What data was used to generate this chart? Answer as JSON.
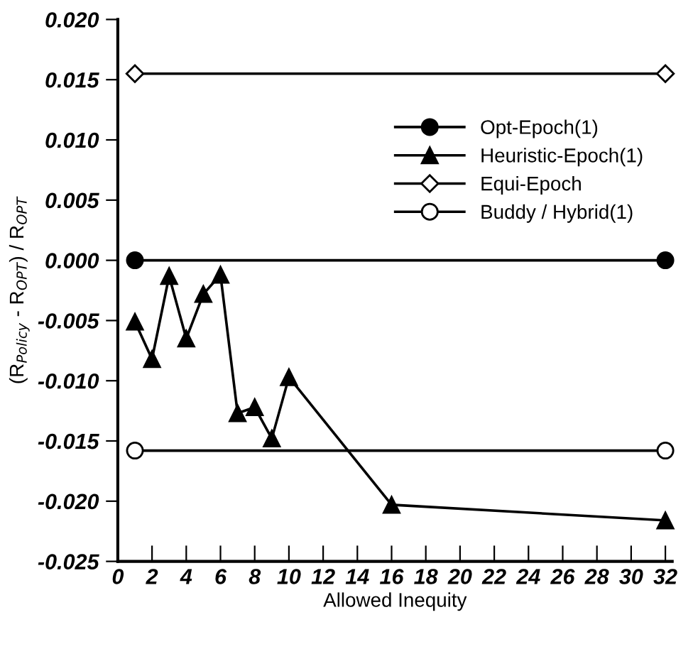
{
  "chart_data": {
    "type": "line",
    "xlabel": "Allowed Inequity",
    "ylabel": "(R$_{Policy}$ - R$_{OPT}$) / R$_{OPT}$",
    "xlim": [
      0,
      32.4
    ],
    "xticks": [
      0,
      2,
      4,
      6,
      8,
      10,
      12,
      14,
      16,
      18,
      20,
      22,
      24,
      26,
      28,
      30,
      32
    ],
    "ylim": [
      -0.025,
      0.02
    ],
    "yticks": [
      {
        "value": -0.025,
        "label": "-0.025"
      },
      {
        "value": -0.02,
        "label": "-0.020"
      },
      {
        "value": -0.015,
        "label": "-0.015"
      },
      {
        "value": -0.01,
        "label": "-0.010"
      },
      {
        "value": -0.005,
        "label": "-0.005"
      },
      {
        "value": 0,
        "label": "0.000"
      },
      {
        "value": 0.005,
        "label": "0.005"
      },
      {
        "value": 0.01,
        "label": "0.010"
      },
      {
        "value": 0.015,
        "label": "0.015"
      },
      {
        "value": 0.02,
        "label": "0.020"
      }
    ],
    "grid": false,
    "legend": "right",
    "line_style": "solid",
    "series": [
      {
        "name": "Opt-Epoch(1)",
        "color": "#000000",
        "marker": "circle",
        "x": [
          1,
          32
        ],
        "values": [
          0,
          0
        ]
      },
      {
        "name": "Heuristic-Epoch(1)",
        "color": "#000000",
        "marker": "triangle",
        "x": [
          1,
          2,
          3,
          4,
          5,
          6,
          7,
          8,
          9,
          10,
          16,
          32
        ],
        "values": [
          -0.0051,
          -0.0082,
          -0.0013,
          -0.0065,
          -0.0028,
          -0.0012,
          -0.0127,
          -0.0122,
          -0.0148,
          -0.0097,
          -0.0203,
          -0.0216
        ]
      },
      {
        "name": "Equi-Epoch",
        "color": "#000000",
        "marker": "diamond",
        "x": [
          1,
          32
        ],
        "values": [
          0.0155,
          0.0155
        ]
      },
      {
        "name": "Buddy / Hybrid(1)",
        "color": "#000000",
        "marker": "circle",
        "x": [
          1,
          32
        ],
        "values": [
          -0.0158,
          -0.0158
        ]
      }
    ]
  }
}
